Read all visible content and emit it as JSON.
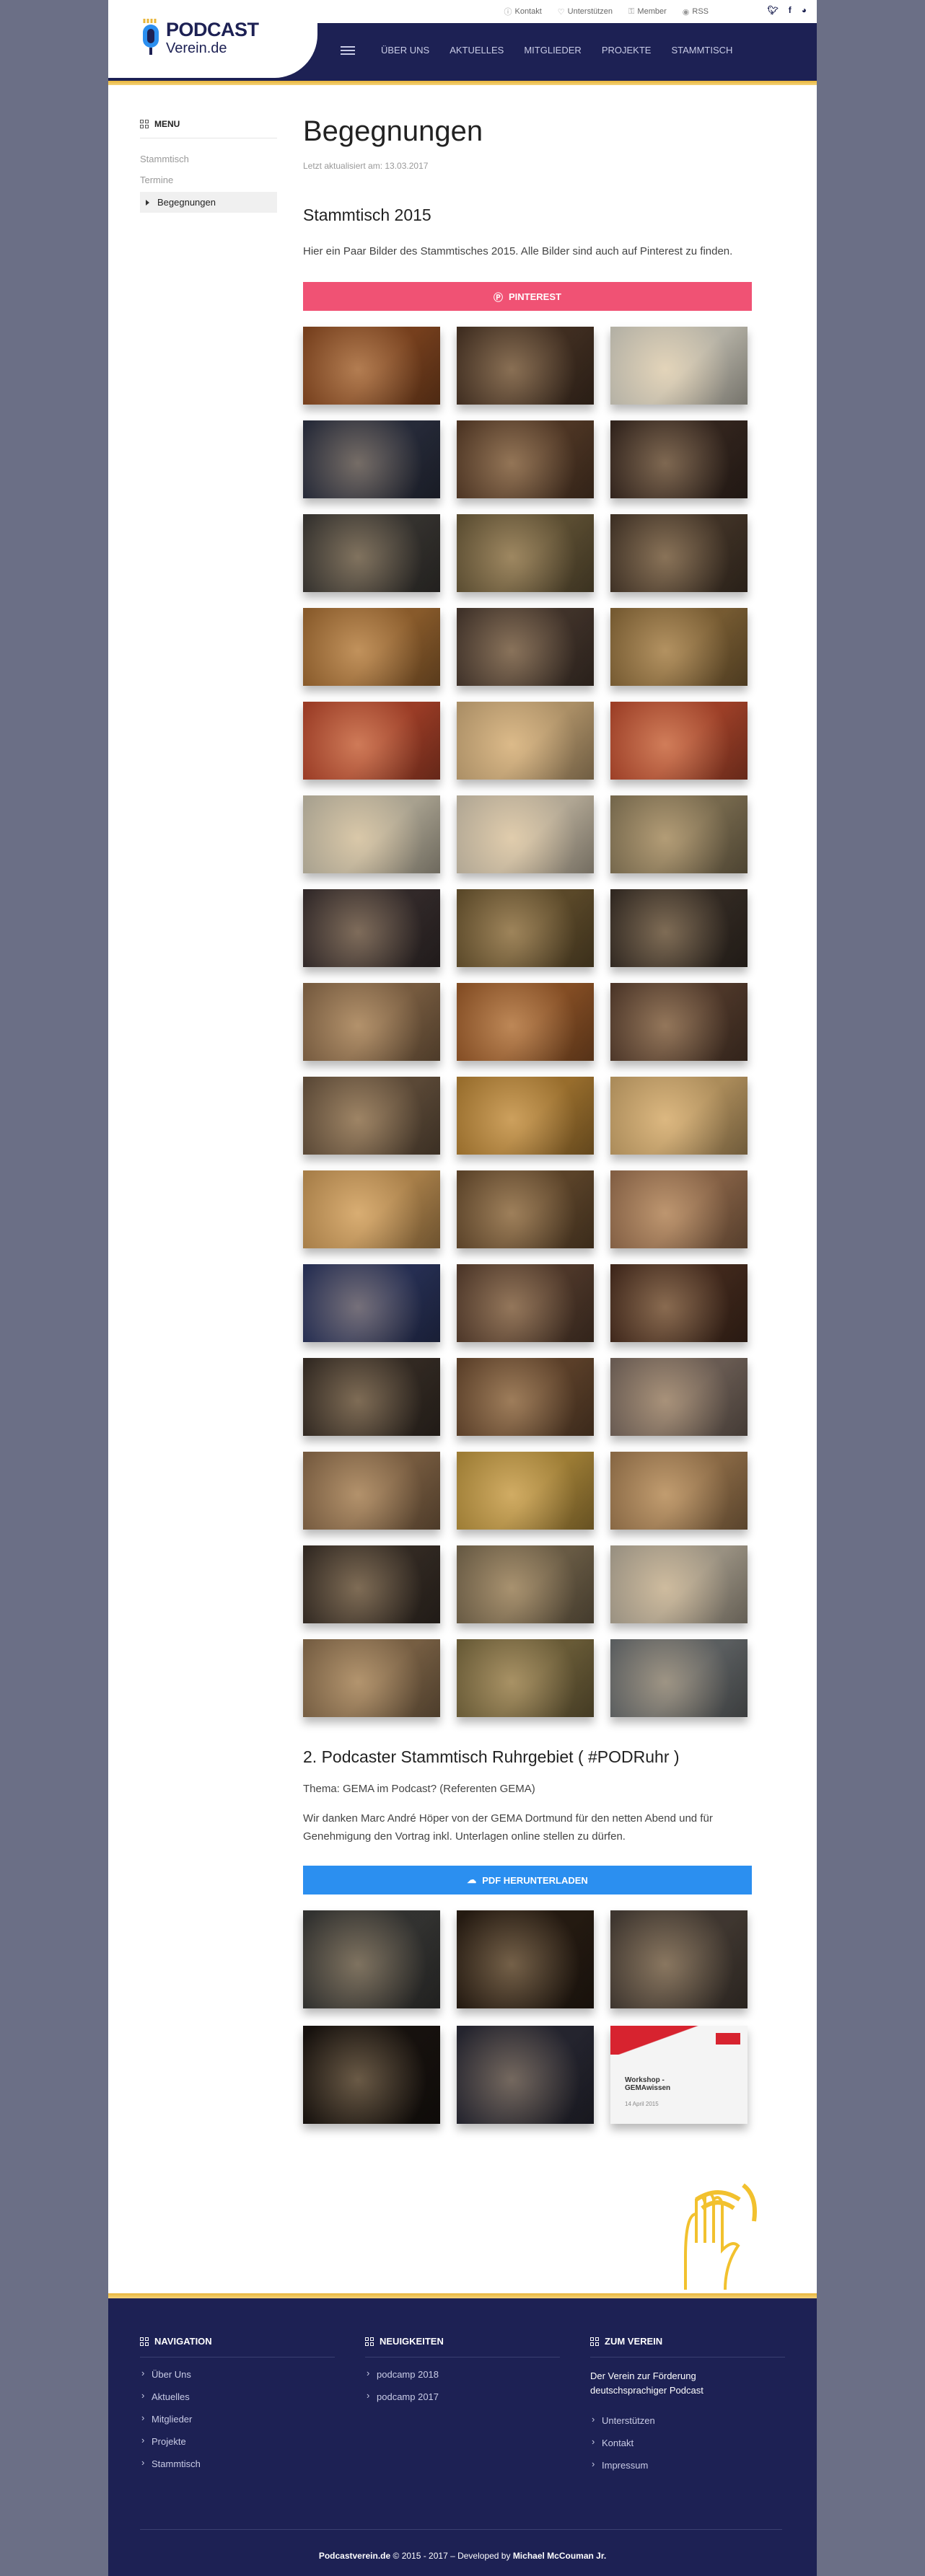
{
  "toplinks": [
    "Kontakt",
    "Unterstützen",
    "Member",
    "RSS"
  ],
  "logo": {
    "line1": "PODCAST",
    "line2": "Verein.de"
  },
  "nav": [
    "ÜBER UNS",
    "AKTUELLES",
    "MITGLIEDER",
    "PROJEKTE",
    "STAMMTISCH"
  ],
  "sidebar": {
    "title": "MENU",
    "items": [
      "Stammtisch",
      "Termine",
      "Begegnungen"
    ]
  },
  "main": {
    "title": "Begegnungen",
    "updated": "Letzt aktualisiert am: 13.03.2017",
    "section1": {
      "title": "Stammtisch 2015",
      "text": "Hier ein Paar Bilder des Stammtisches 2015. Alle Bilder sind auch auf Pinterest zu finden.",
      "button": "PINTEREST"
    },
    "section2": {
      "title": "2. Podcaster Stammtisch Ruhrgebiet ( #PODRuhr )",
      "topic": "Thema: GEMA im Podcast? (Referenten GEMA)",
      "text": "Wir danken Marc André Höper von der GEMA Dortmund für den netten Abend und für Genehmigung den Vortrag inkl. Unterlagen online stellen zu dürfen.",
      "button": "PDF HERUNTERLADEN",
      "slide_title": "Workshop - GEMAwissen",
      "slide_date": "14 April 2015"
    }
  },
  "footer": {
    "navigation": {
      "title": "NAVIGATION",
      "items": [
        "Über Uns",
        "Aktuelles",
        "Mitglieder",
        "Projekte",
        "Stammtisch"
      ]
    },
    "news": {
      "title": "NEUIGKEITEN",
      "items": [
        "podcamp 2018",
        "podcamp 2017"
      ]
    },
    "verein": {
      "title": "ZUM VEREIN",
      "text": "Der Verein zur Förderung deutschsprachiger Podcast",
      "items": [
        "Unterstützen",
        "Kontakt",
        "Impressum"
      ]
    },
    "copyright": {
      "site": "Podcastverein.de",
      "years": " © 2015 - 2017 – Developed by ",
      "author": "Michael McCouman Jr."
    }
  },
  "colors": {
    "navy": "#1d2154",
    "gold": "#e8b53a",
    "pinterest": "#f05274",
    "pdf": "#2b8ff0"
  },
  "photos_section1": [
    "#8a4a22",
    "#4a3526",
    "#d4d0c2",
    "#2c3142",
    "#5a3e2a",
    "#3a2a22",
    "#3d3a36",
    "#6a5a3a",
    "#4a3a2c",
    "#a06a32",
    "#4a3a30",
    "#8a6a3a",
    "#b5462c",
    "#c9a878",
    "#b84a2e",
    "#c5bda8",
    "#d0c4ae",
    "#8a7a5a",
    "#3a3030",
    "#6a5530",
    "#3a3028",
    "#8a6a4a",
    "#9a5a2a",
    "#5a4030",
    "#6a5540",
    "#b28034",
    "#c9a46a",
    "#c49455",
    "#6a4e30",
    "#9a7050",
    "#2c3660",
    "#5a4030",
    "#4a2e20",
    "#3a3028",
    "#6a4a30",
    "#7a6a60",
    "#8a6a4a",
    "#b8923e",
    "#a07a50",
    "#3a3028",
    "#7a6a50",
    "#b4aa98",
    "#8a6e4e",
    "#7a6a40",
    "#6a6e70"
  ],
  "photos_section2": [
    "#3a3a38",
    "#2a1e14",
    "#4a4038",
    "#1a1410",
    "#2a2a36",
    "#f4f4f4"
  ]
}
